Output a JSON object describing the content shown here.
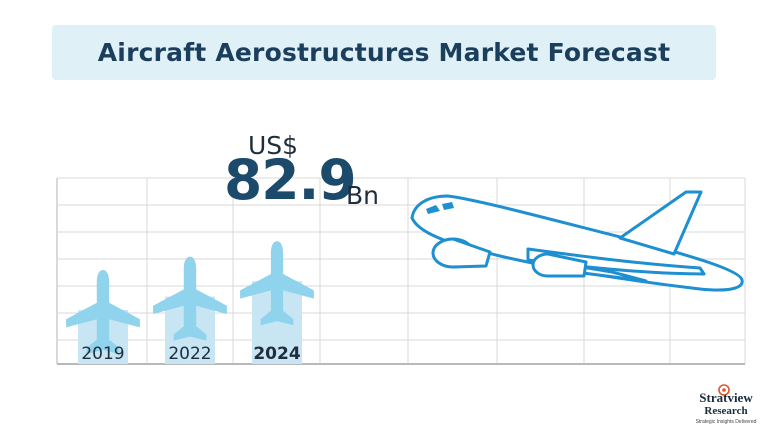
{
  "title": "Aircraft Aerostructures Market Forecast",
  "highlight": {
    "currency": "US$",
    "value": "82.9",
    "unit": "Bn"
  },
  "chart_data": {
    "type": "bar",
    "title": "Aircraft Aerostructures Market Forecast",
    "categories": [
      "2019",
      "2022",
      "2024"
    ],
    "highlighted_category": "2024",
    "values": [
      1,
      1.28,
      1.6
    ],
    "value_note": "",
    "annotation": "US$ 82.9 Bn",
    "grid": true,
    "legend": "none",
    "xlabel": "",
    "ylabel": ""
  },
  "colors": {
    "bar": "#c8e5f3",
    "plane_icon": "#8fd3ec",
    "title_bg": "#dff0f7",
    "title_text": "#1b3e5c",
    "value_text": "#1b4a6b",
    "grid": "#d9d9d9",
    "airplane_outline": "#1e8fd0"
  },
  "icons": {
    "bar_icon": "airplane-icon",
    "illustration": "airplane-outline-illustration"
  },
  "logo": {
    "brand": "Stratview",
    "sub": "Research",
    "tagline": "Strategic Insights Delivered"
  }
}
